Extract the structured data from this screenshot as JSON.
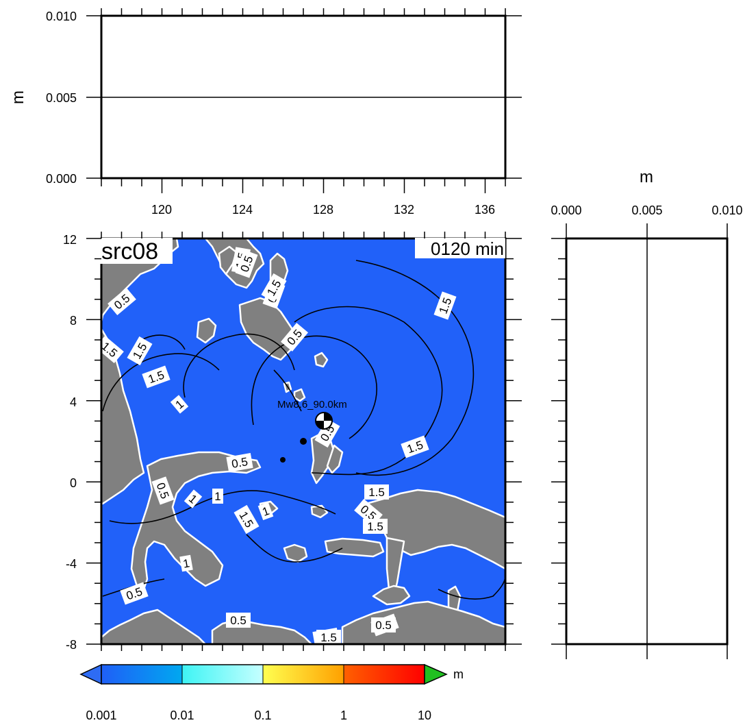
{
  "top_panel": {
    "unit": "m",
    "y_ticks": [
      "0.010",
      "0.005",
      "0.000"
    ],
    "x_ticks": [
      "120",
      "124",
      "128",
      "132",
      "136"
    ]
  },
  "right_panel": {
    "unit": "m",
    "x_ticks": [
      "0.000",
      "0.005",
      "0.010"
    ]
  },
  "map": {
    "source_label": "src08",
    "time_label": "0120 min",
    "event_label": "Mw8.6_90.0km",
    "y_ticks": [
      "12",
      "8",
      "4",
      "0",
      "-4",
      "-8"
    ],
    "contour_labels": [
      "0.5",
      "1.5",
      "1",
      "0.5",
      "1.5",
      "1.5",
      "1.5",
      "1",
      "0.5",
      "0.5",
      "1.5",
      "0.5",
      "1",
      "1.5",
      "1.5",
      "1",
      "0.5",
      "1.5",
      "1.5",
      "0.5",
      "1",
      "0.5",
      "1.5",
      "0.5",
      "0.5",
      "1.5",
      "0.5",
      "1.5",
      "0.5"
    ],
    "colors": {
      "ocean": "#2161f9",
      "land": "#808080",
      "coastline": "#ffffff",
      "contour": "#000000"
    }
  },
  "colorbar": {
    "unit": "m",
    "tick_labels": [
      "0.001",
      "0.01",
      "0.1",
      "1",
      "10"
    ],
    "colors": [
      "#2e6cf4",
      "#00b0f0",
      "#3ef5f5",
      "#c8ffff",
      "#ffff40",
      "#ffa500",
      "#ff5500",
      "#ff0000",
      "#20c020"
    ]
  }
}
